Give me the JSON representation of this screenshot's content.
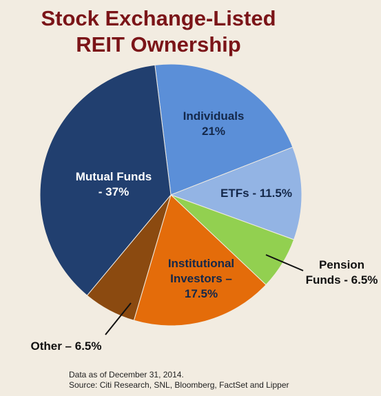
{
  "chart_data": {
    "type": "pie",
    "title": "Stock Exchange-Listed REIT Ownership",
    "categories": [
      "Individuals 21%",
      "ETFs - 11.5%",
      "Pension Funds - 6.5%",
      "Institutional Investors – 17.5%",
      "Other – 6.5%",
      "Mutual Funds - 37%"
    ],
    "values": [
      21,
      11.5,
      6.5,
      17.5,
      6.5,
      37
    ],
    "colors": [
      "#5b8fd8",
      "#93b4e4",
      "#92d050",
      "#e46c0a",
      "#8b4a10",
      "#213f6f"
    ],
    "notes": [
      "Data as of December 31, 2014.",
      "Source: Citi Research, SNL, Bloomberg, FactSet and Lipper"
    ]
  }
}
